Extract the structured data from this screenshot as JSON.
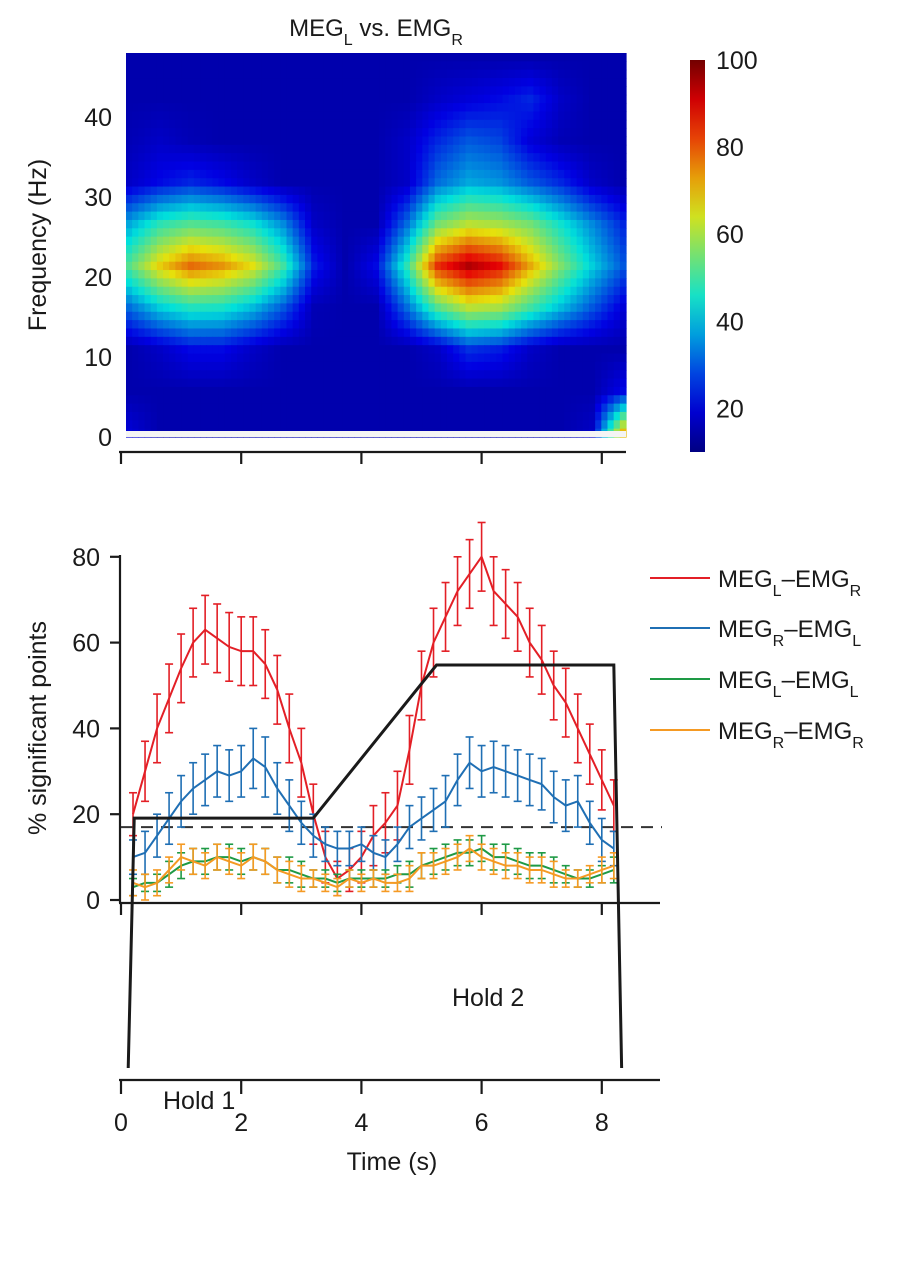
{
  "chart_data": [
    {
      "type": "heatmap",
      "title": {
        "a": "MEG",
        "a_sub": "L",
        "mid": " vs. ",
        "b": "EMG",
        "b_sub": "R"
      },
      "xlabel": "",
      "ylabel": "Frequency (Hz)",
      "x_unit": "s",
      "xlim": [
        0,
        9
      ],
      "ylim": [
        0,
        48
      ],
      "yticks": [
        "0",
        "10",
        "20",
        "30",
        "40"
      ],
      "colorbar": {
        "colormap": "jet",
        "range": [
          10,
          100
        ],
        "ticks": [
          "20",
          "40",
          "60",
          "80",
          "100"
        ]
      },
      "time_centers": [
        0.25,
        0.75,
        1.25,
        1.75,
        2.25,
        2.75,
        3.25,
        3.75,
        4.25,
        4.75,
        5.25,
        5.75,
        6.25,
        6.75,
        7.25,
        7.75,
        8.25
      ],
      "freq_centers": [
        45,
        40,
        35,
        30,
        25,
        20,
        15,
        10,
        5,
        0
      ],
      "values": [
        [
          15,
          15,
          15,
          15,
          15,
          15,
          15,
          15,
          15,
          15,
          15,
          15,
          15,
          15,
          15,
          15,
          15
        ],
        [
          15,
          15,
          15,
          15,
          15,
          15,
          15,
          15,
          15,
          15,
          18,
          20,
          22,
          25,
          18,
          15,
          15
        ],
        [
          16,
          18,
          16,
          15,
          15,
          15,
          15,
          15,
          15,
          18,
          25,
          30,
          28,
          20,
          16,
          15,
          15
        ],
        [
          18,
          22,
          25,
          22,
          18,
          15,
          15,
          15,
          15,
          18,
          32,
          38,
          36,
          30,
          25,
          18,
          15
        ],
        [
          38,
          48,
          52,
          50,
          45,
          35,
          18,
          15,
          15,
          32,
          55,
          62,
          60,
          55,
          45,
          35,
          25
        ],
        [
          52,
          68,
          78,
          74,
          66,
          50,
          24,
          15,
          22,
          48,
          84,
          94,
          88,
          72,
          56,
          42,
          30
        ],
        [
          32,
          42,
          47,
          46,
          40,
          30,
          16,
          15,
          15,
          32,
          52,
          62,
          60,
          50,
          40,
          30,
          20
        ],
        [
          15,
          18,
          22,
          22,
          18,
          15,
          15,
          15,
          15,
          15,
          18,
          26,
          24,
          18,
          15,
          15,
          15
        ],
        [
          15,
          15,
          15,
          15,
          15,
          15,
          15,
          15,
          15,
          15,
          15,
          15,
          15,
          15,
          15,
          15,
          22
        ],
        [
          20,
          15,
          15,
          15,
          15,
          15,
          15,
          15,
          15,
          15,
          15,
          15,
          15,
          15,
          15,
          18,
          70
        ]
      ]
    },
    {
      "type": "line",
      "xlabel": "",
      "ylabel": "% significant points",
      "xlim": [
        0,
        9
      ],
      "ylim": [
        0,
        85
      ],
      "yticks": [
        "0",
        "20",
        "40",
        "60",
        "80"
      ],
      "threshold": 17,
      "legend_placement": "right",
      "x": [
        0.2,
        0.4,
        0.6,
        0.8,
        1.0,
        1.2,
        1.4,
        1.6,
        1.8,
        2.0,
        2.2,
        2.4,
        2.6,
        2.8,
        3.0,
        3.2,
        3.4,
        3.6,
        3.8,
        4.0,
        4.2,
        4.4,
        4.6,
        4.8,
        5.0,
        5.2,
        5.4,
        5.6,
        5.8,
        6.0,
        6.2,
        6.4,
        6.6,
        6.8,
        7.0,
        7.2,
        7.4,
        7.6,
        7.8,
        8.0,
        8.2
      ],
      "series": [
        {
          "name": {
            "a": "MEG",
            "a_sub": "L",
            "b": "EMG",
            "b_sub": "R"
          },
          "color": "#e31f26",
          "values": [
            20,
            30,
            40,
            47,
            54,
            60,
            63,
            61,
            59,
            58,
            58,
            55,
            49,
            40,
            32,
            20,
            10,
            5,
            7,
            10,
            15,
            18,
            22,
            35,
            50,
            60,
            66,
            72,
            76,
            80,
            72,
            69,
            66,
            60,
            56,
            50,
            46,
            40,
            34,
            28,
            22
          ],
          "error": [
            5,
            7,
            8,
            8,
            8,
            8,
            8,
            8,
            8,
            8,
            8,
            8,
            8,
            8,
            8,
            7,
            6,
            4,
            5,
            6,
            7,
            7,
            8,
            8,
            8,
            8,
            8,
            8,
            8,
            8,
            8,
            8,
            8,
            8,
            8,
            8,
            8,
            8,
            7,
            7,
            6
          ]
        },
        {
          "name": {
            "a": "MEG",
            "a_sub": "R",
            "b": "EMG",
            "b_sub": "L"
          },
          "color": "#1f6fb4",
          "values": [
            10,
            11,
            15,
            19,
            23,
            26,
            28,
            30,
            29,
            30,
            33,
            31,
            26,
            22,
            18,
            15,
            13,
            12,
            12,
            13,
            11,
            10,
            13,
            17,
            19,
            21,
            23,
            28,
            32,
            30,
            31,
            30,
            29,
            28,
            27,
            24,
            22,
            23,
            18,
            14,
            12
          ],
          "error": [
            4,
            5,
            5,
            6,
            6,
            6,
            6,
            6,
            6,
            6,
            7,
            7,
            6,
            6,
            5,
            5,
            4,
            4,
            4,
            4,
            4,
            4,
            4,
            5,
            5,
            5,
            6,
            6,
            6,
            6,
            6,
            6,
            6,
            6,
            6,
            6,
            6,
            6,
            5,
            5,
            4
          ]
        },
        {
          "name": {
            "a": "MEG",
            "a_sub": "L",
            "b": "EMG",
            "b_sub": "L"
          },
          "color": "#1e9a45",
          "values": [
            3,
            4,
            4,
            6,
            8,
            9,
            9,
            10,
            10,
            9,
            10,
            9,
            7,
            7,
            6,
            5,
            5,
            4,
            5,
            5,
            5,
            5,
            6,
            6,
            8,
            9,
            10,
            11,
            11,
            12,
            10,
            10,
            9,
            8,
            8,
            7,
            6,
            5,
            5,
            6,
            7
          ],
          "error": [
            2,
            2,
            2,
            3,
            3,
            3,
            3,
            3,
            3,
            3,
            3,
            3,
            3,
            3,
            3,
            2,
            2,
            2,
            2,
            2,
            2,
            2,
            2,
            3,
            3,
            3,
            3,
            3,
            3,
            3,
            3,
            3,
            3,
            3,
            3,
            3,
            2,
            2,
            2,
            2,
            3
          ]
        },
        {
          "name": {
            "a": "MEG",
            "a_sub": "R",
            "b": "EMG",
            "b_sub": "R"
          },
          "color": "#f59a23",
          "values": [
            4,
            3,
            4,
            7,
            10,
            9,
            8,
            10,
            9,
            8,
            10,
            9,
            7,
            6,
            5,
            5,
            4,
            3,
            5,
            4,
            5,
            4,
            4,
            5,
            8,
            8,
            9,
            10,
            12,
            10,
            9,
            8,
            8,
            7,
            7,
            6,
            5,
            5,
            6,
            7,
            8
          ],
          "error": [
            3,
            3,
            3,
            3,
            3,
            3,
            3,
            3,
            3,
            3,
            3,
            3,
            3,
            3,
            3,
            2,
            2,
            2,
            2,
            2,
            2,
            2,
            2,
            3,
            3,
            3,
            3,
            3,
            3,
            3,
            3,
            3,
            3,
            3,
            3,
            3,
            2,
            2,
            2,
            3,
            3
          ]
        }
      ]
    },
    {
      "type": "line",
      "xlabel": "Time (s)",
      "xlim": [
        0,
        9
      ],
      "xticks": [
        "0",
        "2",
        "4",
        "6",
        "8"
      ],
      "force_profile": {
        "x": [
          0.12,
          0.22,
          3.2,
          5.25,
          8.2,
          8.33
        ],
        "level": [
          0,
          0.62,
          0.62,
          1,
          1,
          0
        ]
      },
      "annotations": [
        "Hold 1",
        "Hold 2"
      ]
    }
  ]
}
